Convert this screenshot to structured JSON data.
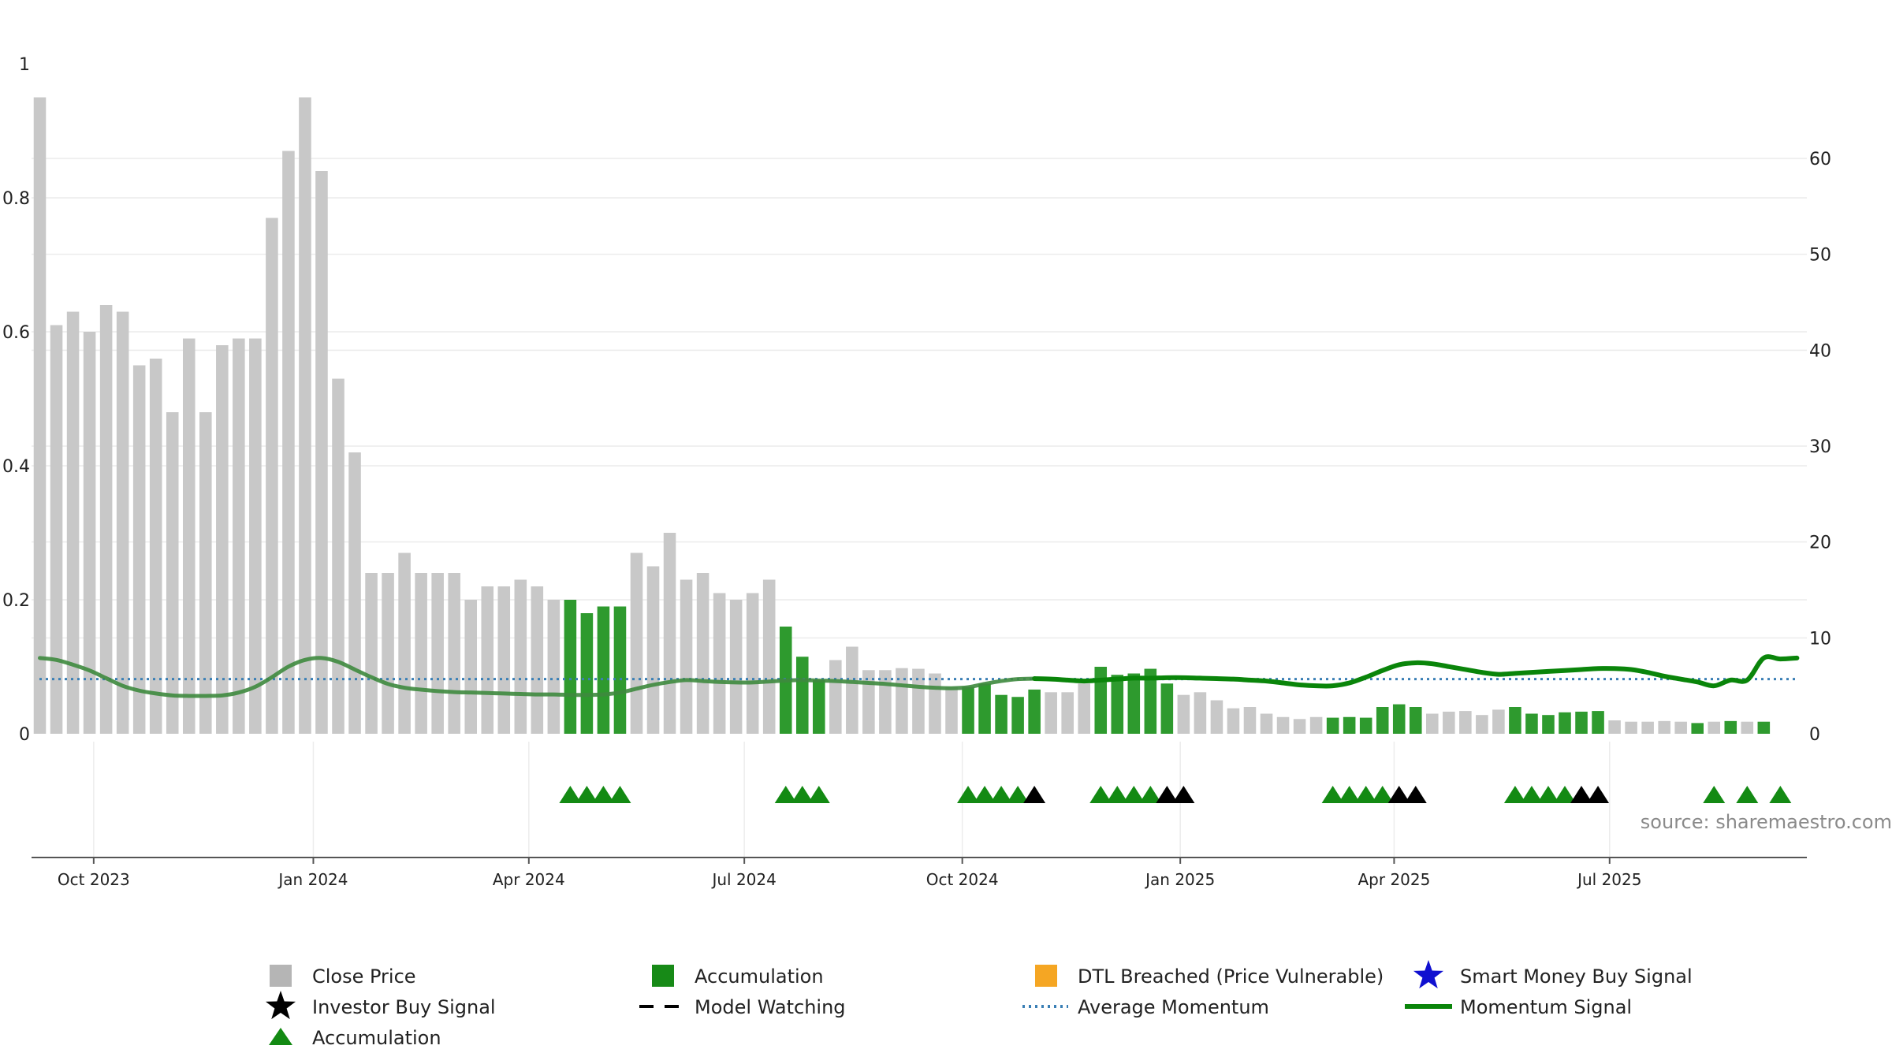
{
  "chart_data": {
    "type": "bar",
    "title": "",
    "source_text": "source: sharemaestro.com",
    "colors": {
      "close_price": "#c8c8c8",
      "accumulation": "#2e9a2e",
      "accumulation_marker": "#138a13",
      "investor_buy": "#000000",
      "dtl_breached": "#f5a623",
      "smart_money": "#1010d0",
      "average_momentum": "#3a7fb5",
      "momentum_signal": "#3e8a3e",
      "momentum_signal_strong": "#0a850a",
      "grid": "#ececec"
    },
    "left_axis": {
      "range": [
        0,
        1
      ],
      "ticks": [
        0,
        0.2,
        0.4,
        0.6,
        0.8,
        1
      ],
      "tick_labels": [
        "0",
        "0.2",
        "0.4",
        "0.6",
        "0.8",
        "1"
      ]
    },
    "right_axis": {
      "range": [
        0,
        70
      ],
      "ticks": [
        0,
        10,
        20,
        30,
        40,
        50,
        60
      ],
      "tick_labels": [
        "0",
        "10",
        "20",
        "30",
        "40",
        "50",
        "60"
      ]
    },
    "x_ticks": [
      {
        "label": "Oct 2023",
        "week": 3.25
      },
      {
        "label": "Jan 2024",
        "week": 16.5
      },
      {
        "label": "Apr 2024",
        "week": 29.5
      },
      {
        "label": "Jul 2024",
        "week": 42.5
      },
      {
        "label": "Oct 2024",
        "week": 55.65
      },
      {
        "label": "Jan 2025",
        "week": 68.8
      },
      {
        "label": "Apr 2025",
        "week": 81.7
      },
      {
        "label": "Jul 2025",
        "week": 94.7
      }
    ],
    "week_range": [
      -0.5,
      106.6
    ],
    "price_weekly": [
      0.95,
      0.61,
      0.63,
      0.6,
      0.64,
      0.63,
      0.55,
      0.56,
      0.48,
      0.59,
      0.48,
      0.58,
      0.59,
      0.59,
      0.77,
      0.87,
      0.95,
      0.84,
      0.53,
      0.42,
      0.24,
      0.24,
      0.27,
      0.24,
      0.24,
      0.24,
      0.2,
      0.22,
      0.22,
      0.23,
      0.22,
      0.2,
      0.2,
      0.18,
      0.19,
      0.19,
      0.27,
      0.25,
      0.3,
      0.23,
      0.24,
      0.21,
      0.2,
      0.21,
      0.23,
      0.16,
      0.115,
      0.08,
      0.11,
      0.13,
      0.095,
      0.095,
      0.098,
      0.097,
      0.09,
      0.07,
      0.07,
      0.075,
      0.058,
      0.055,
      0.066,
      0.062,
      0.062,
      0.075,
      0.1,
      0.088,
      0.09,
      0.097,
      0.075,
      0.058,
      0.062,
      0.05,
      0.038,
      0.04,
      0.03,
      0.025,
      0.022,
      0.025,
      0.024,
      0.025,
      0.024,
      0.04,
      0.044,
      0.04,
      0.03,
      0.033,
      0.034,
      0.028,
      0.036,
      0.04,
      0.03,
      0.028,
      0.032,
      0.033,
      0.034,
      0.02,
      0.018,
      0.018,
      0.019,
      0.018,
      0.016,
      0.018,
      0.019,
      0.018,
      0.018
    ],
    "accumulation_weeks": [
      32,
      33,
      34,
      35,
      45,
      46,
      47,
      56,
      57,
      58,
      59,
      60,
      64,
      65,
      66,
      67,
      68,
      78,
      79,
      80,
      81,
      82,
      83,
      89,
      90,
      91,
      92,
      93,
      94,
      100,
      102,
      104
    ],
    "accumulation_markers_weeks": [
      32,
      33,
      34,
      35,
      45,
      46,
      47,
      56,
      57,
      58,
      59,
      64,
      65,
      66,
      67,
      78,
      79,
      80,
      81,
      89,
      90,
      91,
      92,
      101,
      103,
      105
    ],
    "investor_buy_weeks": [
      60,
      68,
      69,
      82,
      83,
      93,
      94
    ],
    "momentum_weekly": [
      7.8,
      7.5,
      7.0,
      6.3,
      5.6,
      4.9,
      4.4,
      4.1,
      3.9,
      3.8,
      3.8,
      3.8,
      3.9,
      4.2,
      4.8,
      5.6,
      6.6,
      7.4,
      7.8,
      7.9,
      7.6,
      7.0,
      6.3,
      5.6,
      5.0,
      4.6,
      4.3,
      4.1,
      4.0,
      3.9,
      3.8,
      3.8,
      3.7,
      3.7,
      3.6,
      3.6,
      3.6,
      3.6,
      3.6,
      3.6,
      3.6,
      3.6,
      3.7,
      3.7,
      3.6,
      3.6,
      4.2,
      5.0,
      5.2,
      5.5,
      5.6,
      5.5,
      5.5,
      5.4,
      5.4,
      5.3,
      5.6,
      5.7,
      5.8,
      5.8,
      5.8,
      5.7,
      5.6,
      5.4,
      5.3,
      5.2,
      5.0,
      4.9,
      4.8,
      4.8,
      4.8,
      4.8,
      4.8,
      4.9,
      5.3,
      5.7,
      5.5,
      5.4,
      5.3,
      5.2,
      5.2,
      5.3,
      5.4,
      5.5,
      5.6,
      5.6,
      5.6,
      5.6,
      5.5,
      5.4,
      5.4,
      5.4,
      5.4,
      5.3,
      5.5,
      5.7,
      5.8,
      5.8,
      5.8,
      5.7,
      5.6,
      5.4,
      5.2,
      5.1,
      5.0,
      4.9,
      4.8
    ],
    "momentum_curve": [
      7.9,
      7.7,
      7.2,
      6.6,
      5.8,
      5.0,
      4.5,
      4.2,
      4.0,
      3.95,
      3.95,
      4.0,
      4.3,
      4.9,
      5.9,
      7.0,
      7.7,
      7.9,
      7.5,
      6.7,
      5.9,
      5.2,
      4.8,
      4.6,
      4.45,
      4.35,
      4.3,
      4.25,
      4.2,
      4.15,
      4.1,
      4.1,
      4.05,
      4.05,
      4.1,
      4.3,
      4.7,
      5.1,
      5.4,
      5.6,
      5.5,
      5.4,
      5.35,
      5.35,
      5.45,
      5.55,
      5.6,
      5.55,
      5.5,
      5.4,
      5.3,
      5.2,
      5.05,
      4.9,
      4.8,
      4.75,
      4.85,
      5.2,
      5.5,
      5.7,
      5.75,
      5.7,
      5.6,
      5.5,
      5.6,
      5.7,
      5.8,
      5.8,
      5.85,
      5.85,
      5.8,
      5.75,
      5.7,
      5.6,
      5.5,
      5.3,
      5.1,
      5.0,
      5.0,
      5.3,
      5.9,
      6.6,
      7.2,
      7.4,
      7.3,
      7.0,
      6.7,
      6.4,
      6.2,
      6.3,
      6.4,
      6.5,
      6.6,
      6.7,
      6.8,
      6.8,
      6.7,
      6.4,
      6.0,
      5.7,
      5.4,
      5.0,
      5.6,
      5.6,
      7.9,
      7.8,
      7.9
    ],
    "momentum_strong_from_week": 60,
    "average_momentum": 5.7,
    "legend": [
      {
        "key": "close_price",
        "label": "Close Price",
        "symbol": "square-grey"
      },
      {
        "key": "accumulation_bar",
        "label": "Accumulation",
        "symbol": "square-green"
      },
      {
        "key": "dtl_breached",
        "label": "DTL Breached (Price Vulnerable)",
        "symbol": "square-orange"
      },
      {
        "key": "smart_money",
        "label": "Smart Money Buy Signal",
        "symbol": "star-blue"
      },
      {
        "key": "investor_buy",
        "label": "Investor Buy Signal",
        "symbol": "star-black"
      },
      {
        "key": "model_watching",
        "label": "Model Watching",
        "symbol": "dash-black"
      },
      {
        "key": "average_momentum",
        "label": "Average Momentum",
        "symbol": "dotted-blue"
      },
      {
        "key": "momentum_signal",
        "label": "Momentum Signal",
        "symbol": "line-green"
      },
      {
        "key": "accumulation_marker",
        "label": "Accumulation",
        "symbol": "triangle-green"
      }
    ]
  }
}
